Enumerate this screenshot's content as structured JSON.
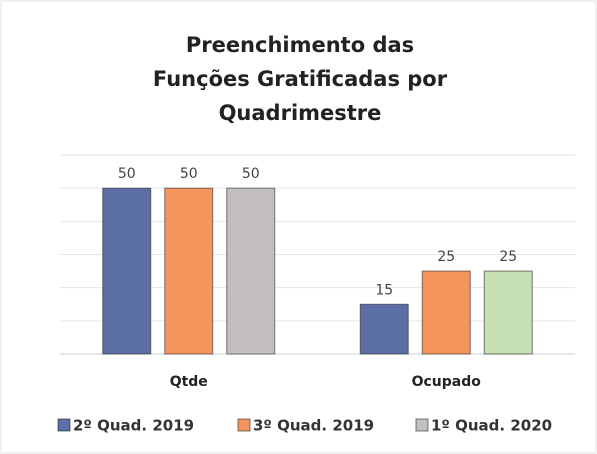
{
  "chart_data": {
    "type": "bar",
    "title": [
      "Preenchimento das",
      "Funções Gratificadas por",
      "Quadrimestre"
    ],
    "categories": [
      "Qtde",
      "Ocupado"
    ],
    "series": [
      {
        "name": "2º Quad. 2019",
        "color": "#5b6ea6",
        "values": [
          50,
          15
        ]
      },
      {
        "name": "3º Quad. 2019",
        "color": "#f4955e",
        "values": [
          50,
          25
        ]
      },
      {
        "name": "1º Quad. 2020",
        "color": "#c3bfbf",
        "point_colors": [
          "#c3bfbf",
          "#c6e0b4"
        ],
        "values": [
          50,
          25
        ]
      }
    ],
    "ylim": [
      0,
      60
    ],
    "yticks": [
      0,
      10,
      20,
      30,
      40,
      50,
      60
    ],
    "grid": true,
    "legend": "bottom"
  }
}
